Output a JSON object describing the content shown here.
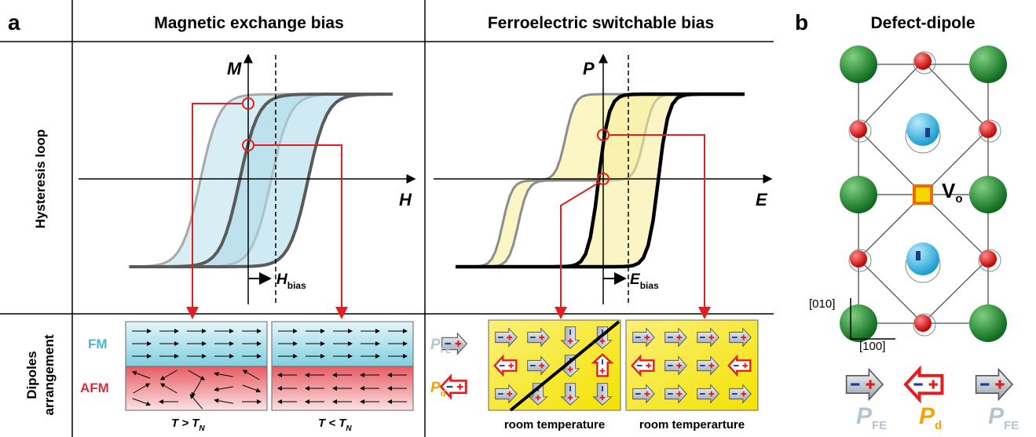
{
  "panel_a": {
    "label": "a",
    "headers": [
      "Magnetic exchange bias",
      "Ferroelectric switchable bias"
    ],
    "row_labels": {
      "hysteresis": "Hysteresis loop",
      "dipoles": [
        "Dipoles",
        "arrangement"
      ]
    },
    "magnetic": {
      "y_axis": "M",
      "x_axis": "H",
      "bias": {
        "symbol": "H",
        "sub": "bias"
      },
      "layers": [
        "FM",
        "AFM"
      ],
      "conditions": [
        {
          "text": "T > T",
          "sub": "N"
        },
        {
          "text": "T < T",
          "sub": "N"
        }
      ]
    },
    "ferroelectric": {
      "y_axis": "P",
      "x_axis": "E",
      "bias": {
        "symbol": "E",
        "sub": "bias"
      },
      "legend": [
        {
          "symbol": "P",
          "sub": "FE"
        },
        {
          "symbol": "P",
          "sub": "d"
        }
      ],
      "conditions": [
        "room temperature",
        "room temperarture"
      ]
    }
  },
  "panel_b": {
    "label": "b",
    "title": "Defect-dipole",
    "vacancy": {
      "symbol": "V",
      "sub": "o"
    },
    "axes": [
      "[010]",
      "[100]"
    ],
    "dipoles": [
      {
        "symbol": "P",
        "sub": "FE"
      },
      {
        "symbol": "P",
        "sub": "d"
      },
      {
        "symbol": "P",
        "sub": "FE"
      }
    ]
  }
}
